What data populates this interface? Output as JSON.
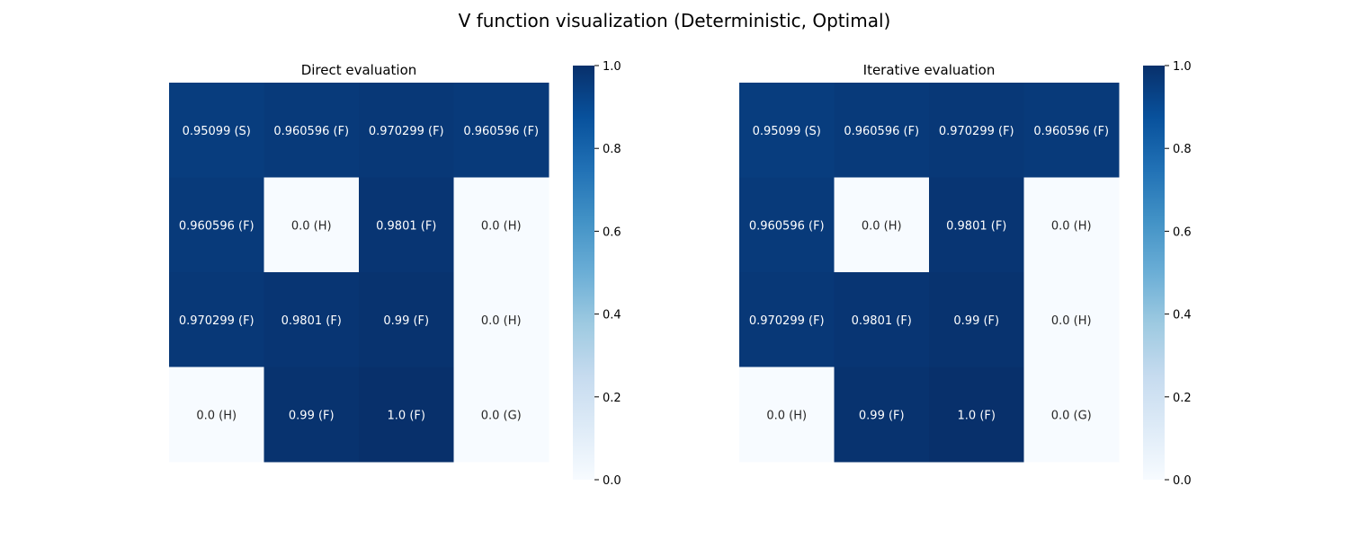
{
  "figure_title": "V function visualization (Deterministic, Optimal)",
  "chart_data": [
    {
      "type": "heatmap",
      "title": "Direct evaluation",
      "xlabel": "",
      "ylabel": "",
      "colormap": "Blues",
      "vmin": 0.0,
      "vmax": 1.0,
      "colorbar_ticks": [
        "0.0",
        "0.2",
        "0.4",
        "0.6",
        "0.8",
        "1.0"
      ],
      "colorbar_tick_values": [
        0.0,
        0.2,
        0.4,
        0.6,
        0.8,
        1.0
      ],
      "values": [
        [
          0.95099,
          0.960596,
          0.970299,
          0.960596
        ],
        [
          0.960596,
          0.0,
          0.9801,
          0.0
        ],
        [
          0.970299,
          0.9801,
          0.99,
          0.0
        ],
        [
          0.0,
          0.99,
          1.0,
          0.0
        ]
      ],
      "annotations": [
        [
          "0.95099 (S)",
          "0.960596 (F)",
          "0.970299 (F)",
          "0.960596 (F)"
        ],
        [
          "0.960596 (F)",
          "0.0 (H)",
          "0.9801 (F)",
          "0.0 (H)"
        ],
        [
          "0.970299 (F)",
          "0.9801 (F)",
          "0.99 (F)",
          "0.0 (H)"
        ],
        [
          "0.0 (H)",
          "0.99 (F)",
          "1.0 (F)",
          "0.0 (G)"
        ]
      ]
    },
    {
      "type": "heatmap",
      "title": "Iterative evaluation",
      "xlabel": "",
      "ylabel": "",
      "colormap": "Blues",
      "vmin": 0.0,
      "vmax": 1.0,
      "colorbar_ticks": [
        "0.0",
        "0.2",
        "0.4",
        "0.6",
        "0.8",
        "1.0"
      ],
      "colorbar_tick_values": [
        0.0,
        0.2,
        0.4,
        0.6,
        0.8,
        1.0
      ],
      "values": [
        [
          0.95099,
          0.960596,
          0.970299,
          0.960596
        ],
        [
          0.960596,
          0.0,
          0.9801,
          0.0
        ],
        [
          0.970299,
          0.9801,
          0.99,
          0.0
        ],
        [
          0.0,
          0.99,
          1.0,
          0.0
        ]
      ],
      "annotations": [
        [
          "0.95099 (S)",
          "0.960596 (F)",
          "0.970299 (F)",
          "0.960596 (F)"
        ],
        [
          "0.960596 (F)",
          "0.0 (H)",
          "0.9801 (F)",
          "0.0 (H)"
        ],
        [
          "0.970299 (F)",
          "0.9801 (F)",
          "0.99 (F)",
          "0.0 (H)"
        ],
        [
          "0.0 (H)",
          "0.99 (F)",
          "1.0 (F)",
          "0.0 (G)"
        ]
      ]
    }
  ]
}
